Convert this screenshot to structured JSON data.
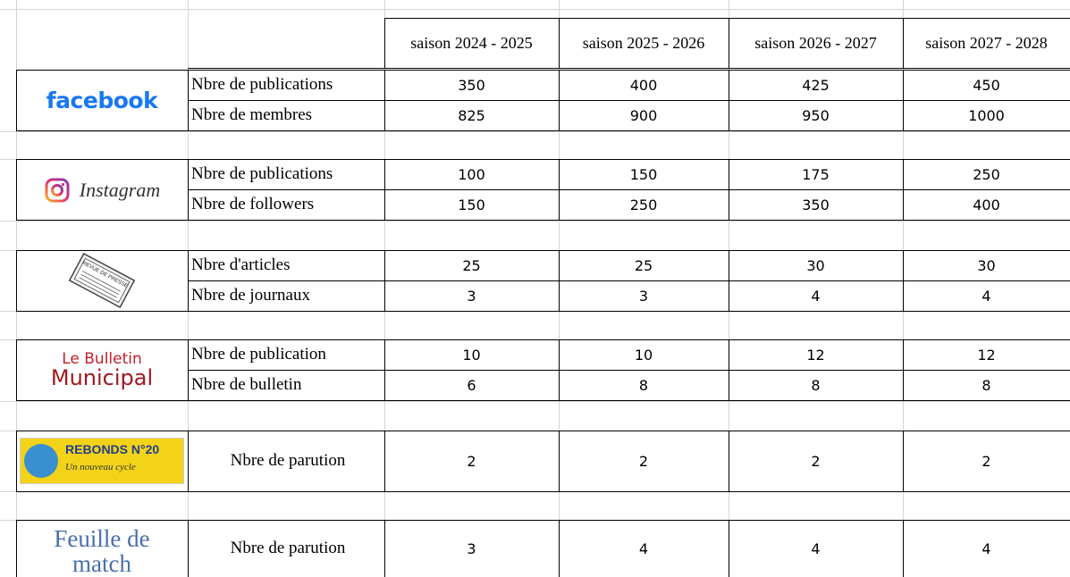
{
  "header": {
    "columns": [
      "saison 2024 - 2025",
      "saison 2025 - 2026",
      "saison 2026 - 2027",
      "saison 2027 - 2028"
    ]
  },
  "groups": [
    {
      "logo": [
        "facebook"
      ],
      "rows": [
        {
          "label": "Nbre de publications",
          "values": [
            350,
            400,
            425,
            450
          ]
        },
        {
          "label": "Nbre de membres",
          "values": [
            825,
            900,
            950,
            1000
          ]
        }
      ]
    },
    {
      "logo": [
        "Instagram"
      ],
      "rows": [
        {
          "label": "Nbre de publications",
          "values": [
            100,
            150,
            175,
            250
          ]
        },
        {
          "label": "Nbre de followers",
          "values": [
            150,
            250,
            350,
            400
          ]
        }
      ]
    },
    {
      "logo": [
        "REVUE DE PRESSE"
      ],
      "rows": [
        {
          "label": "Nbre d'articles",
          "values": [
            25,
            25,
            30,
            30
          ]
        },
        {
          "label": "Nbre de journaux",
          "values": [
            3,
            3,
            4,
            4
          ]
        }
      ]
    },
    {
      "logo": [
        "Le Bulletin",
        "Municipal"
      ],
      "rows": [
        {
          "label": "Nbre de publication",
          "values": [
            10,
            10,
            12,
            12
          ]
        },
        {
          "label": "Nbre de bulletin",
          "values": [
            6,
            8,
            8,
            8
          ]
        }
      ]
    },
    {
      "logo": [
        "REBONDS N°20",
        "Un nouveau cycle"
      ],
      "rows": [
        {
          "label": "Nbre de parution",
          "values": [
            2,
            2,
            2,
            2
          ]
        }
      ]
    },
    {
      "logo": [
        "Feuille de",
        "match"
      ],
      "rows": [
        {
          "label": "Nbre de parution",
          "values": [
            3,
            4,
            4,
            4
          ]
        }
      ]
    }
  ]
}
